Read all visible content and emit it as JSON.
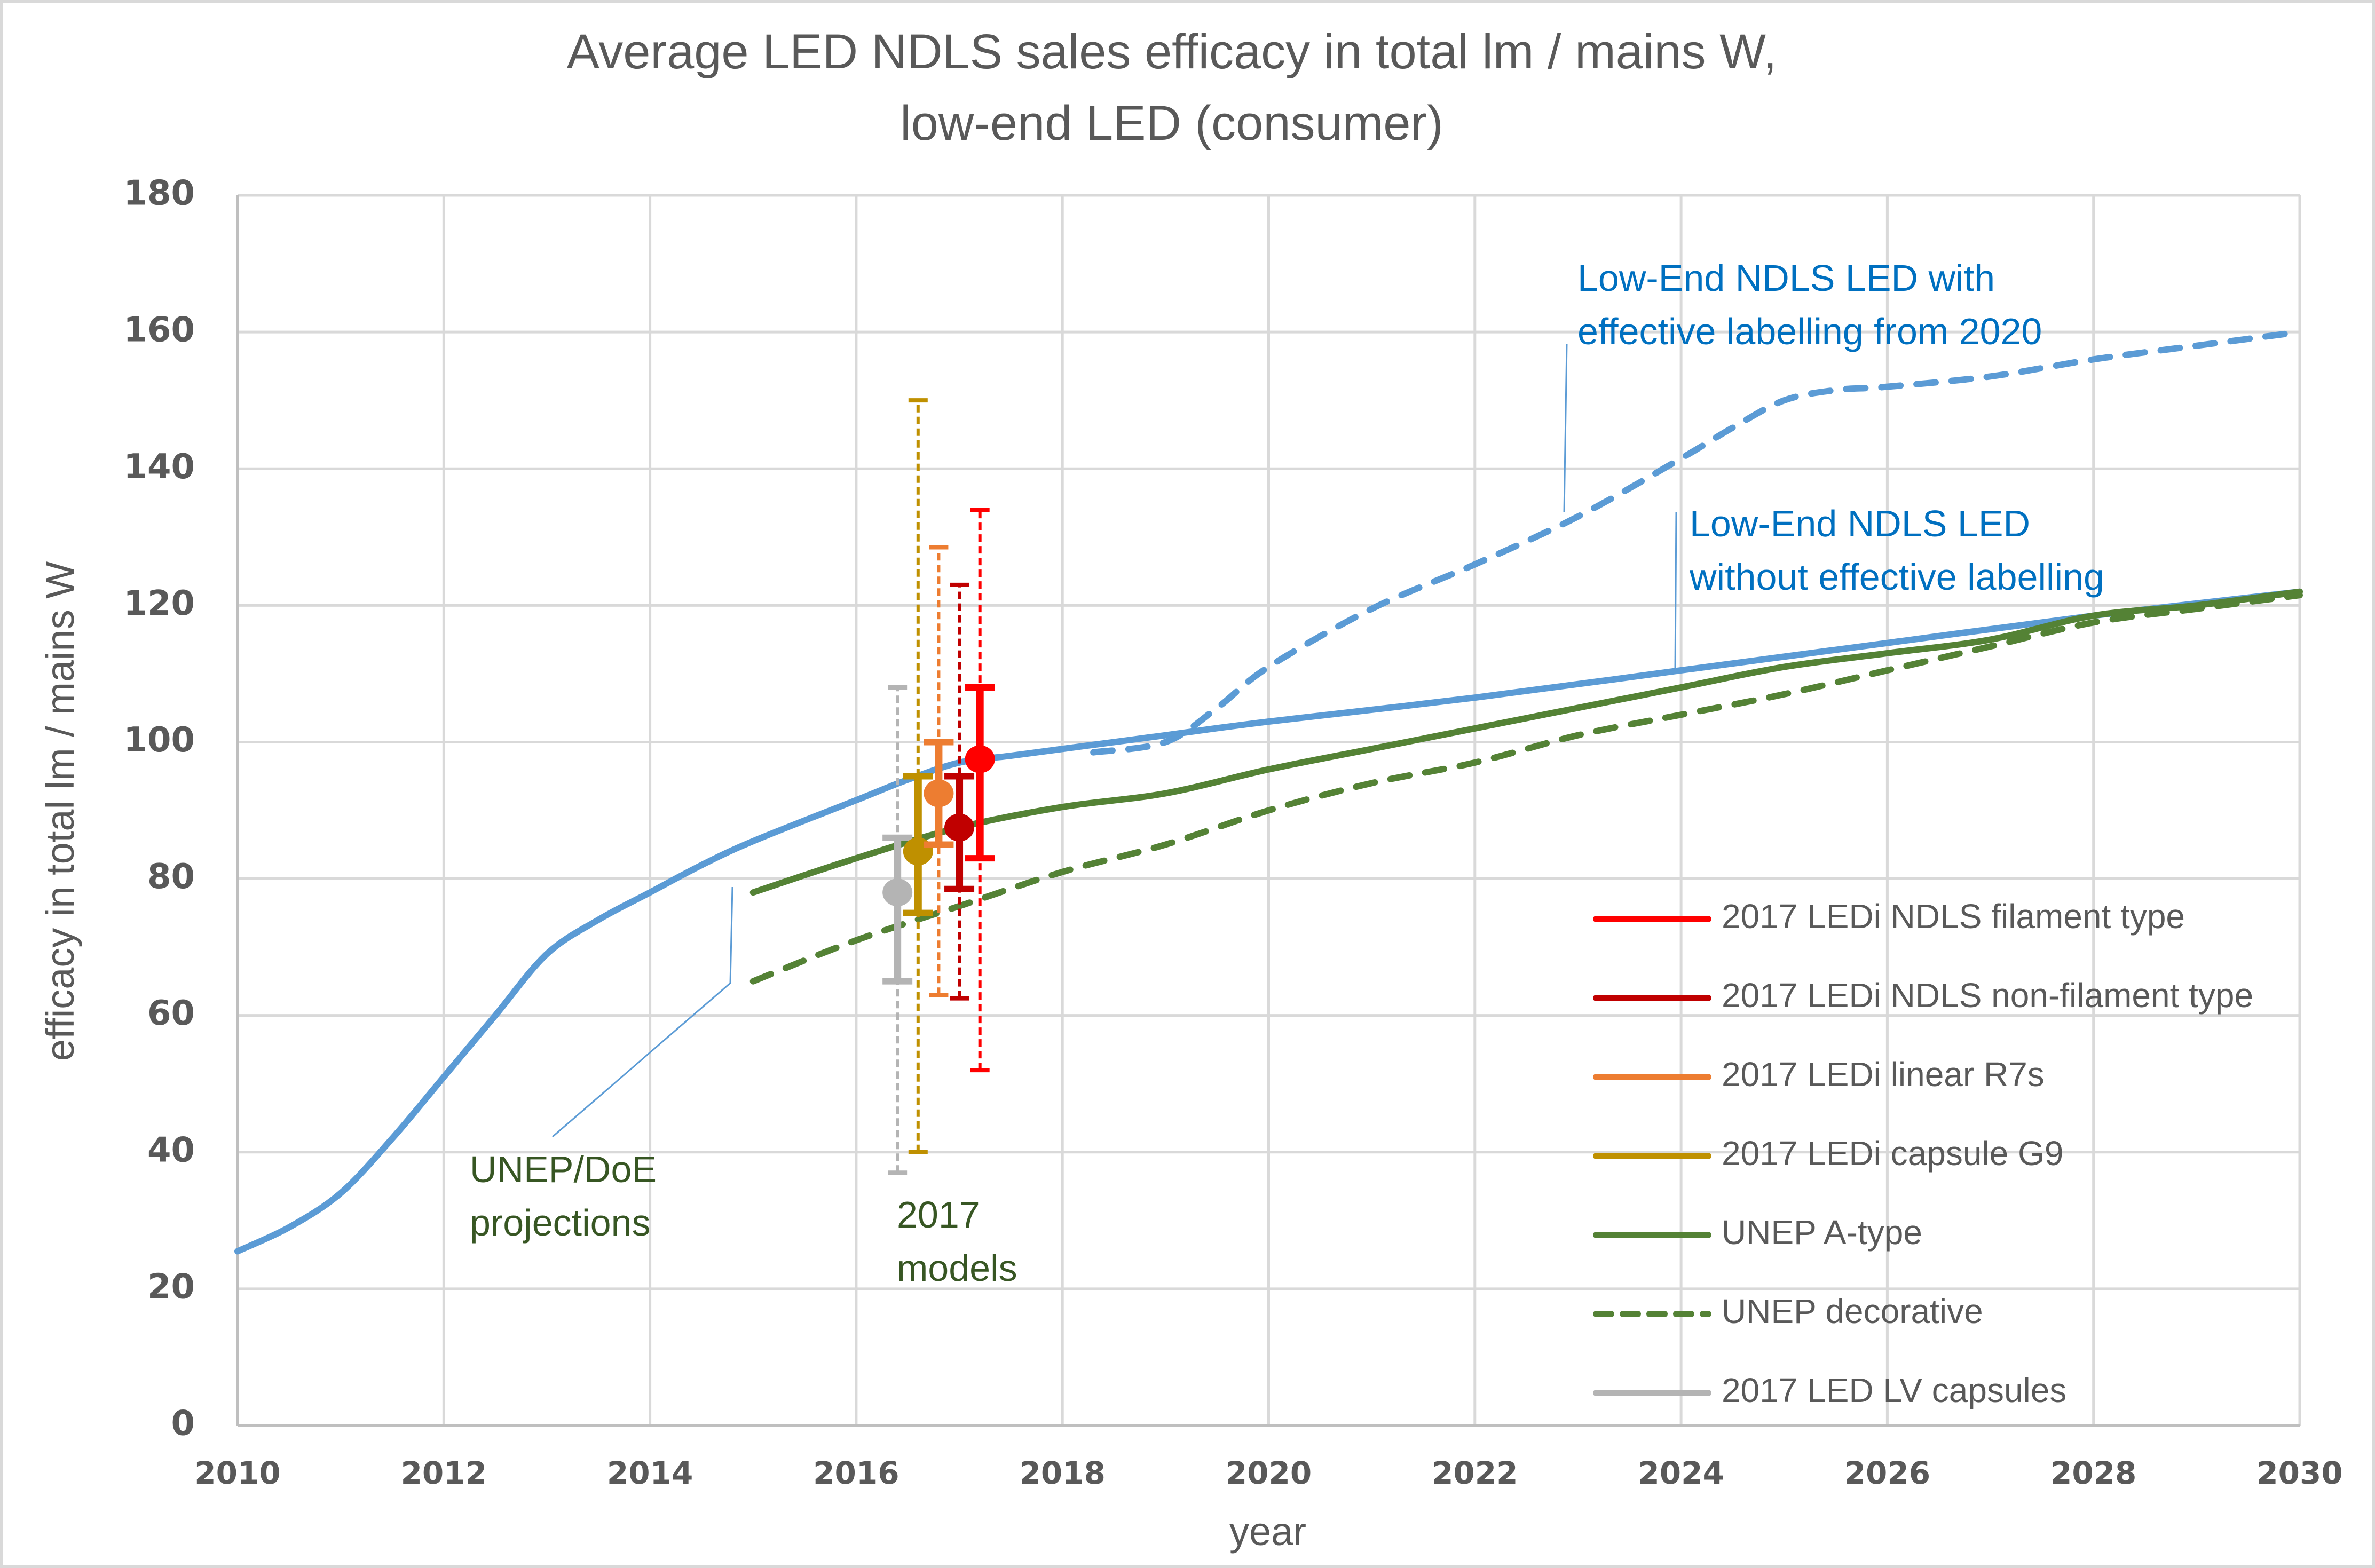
{
  "chart_data": {
    "type": "line",
    "title": [
      "Average LED NDLS sales efficacy in total lm / mains W,",
      "low-end LED (consumer)"
    ],
    "xlabel": "year",
    "ylabel": "efficacy in  total lm / mains W",
    "xlim": [
      2010,
      2030
    ],
    "ylim": [
      0,
      180
    ],
    "x_ticks": [
      "2010",
      "2012",
      "2014",
      "2016",
      "2018",
      "2020",
      "2022",
      "2024",
      "2026",
      "2028",
      "2030"
    ],
    "y_ticks": [
      "0",
      "20",
      "40",
      "60",
      "80",
      "100",
      "120",
      "140",
      "160",
      "180"
    ],
    "grid": true,
    "legend_position": "bottom-right (inside plot)",
    "series": [
      {
        "name": "Low-End NDLS LED without effective labelling",
        "color": "#5b9bd5",
        "style": "solid",
        "in_legend": false,
        "x": [
          2010,
          2010.5,
          2011,
          2011.5,
          2012,
          2012.5,
          2013,
          2013.5,
          2014,
          2014.5,
          2015,
          2016,
          2016.5,
          2017,
          2017.5,
          2018,
          2019,
          2020,
          2022,
          2024,
          2026,
          2028,
          2030
        ],
        "y": [
          25.5,
          29,
          34,
          42,
          51,
          60,
          69,
          74,
          78,
          82,
          85.5,
          91.5,
          94.5,
          97,
          98,
          99,
          101,
          103,
          106.5,
          110.5,
          114.5,
          118.5,
          122
        ]
      },
      {
        "name": "Low-End NDLS LED with effective labelling from 2020",
        "color": "#5b9bd5",
        "style": "dashed",
        "in_legend": false,
        "x": [
          2018.3,
          2019,
          2019.5,
          2020,
          2021,
          2022,
          2023,
          2024,
          2024.5,
          2025,
          2025.5,
          2026,
          2027,
          2028,
          2029,
          2030
        ],
        "y": [
          98.5,
          100,
          105,
          111,
          119.5,
          126,
          133,
          141.5,
          146,
          150,
          151.5,
          152,
          153.5,
          156,
          158,
          160
        ]
      },
      {
        "name": "UNEP A-type",
        "color": "#548235",
        "style": "solid",
        "in_legend": true,
        "x": [
          2015,
          2016,
          2017,
          2018,
          2019,
          2020,
          2021,
          2022,
          2023,
          2024,
          2025,
          2026,
          2027,
          2028,
          2029,
          2030
        ],
        "y": [
          78,
          83,
          87.5,
          90.5,
          92.5,
          96,
          99,
          102,
          105,
          108,
          111,
          113,
          115,
          118.5,
          120,
          122
        ]
      },
      {
        "name": "UNEP decorative",
        "color": "#548235",
        "style": "dashed",
        "in_legend": true,
        "x": [
          2015,
          2016,
          2017,
          2018,
          2019,
          2020,
          2021,
          2022,
          2023,
          2024,
          2025,
          2026,
          2027,
          2028,
          2029,
          2030
        ],
        "y": [
          65,
          71,
          76,
          81,
          85,
          90,
          94,
          97,
          101,
          104,
          107,
          110.5,
          114,
          117.5,
          119.5,
          121.5
        ]
      }
    ],
    "error_points": [
      {
        "name": "2017 LED LV capsules",
        "color": "#b4b4b4",
        "x": 2016.4,
        "y": 78,
        "inner": [
          65,
          86
        ],
        "outer": [
          37,
          108
        ]
      },
      {
        "name": "2017 LEDi capsule G9",
        "color": "#bf9000",
        "x": 2016.6,
        "y": 84,
        "inner": [
          75,
          95
        ],
        "outer": [
          40,
          150
        ]
      },
      {
        "name": "2017 LEDi linear R7s",
        "color": "#ed7d31",
        "x": 2016.8,
        "y": 92.5,
        "inner": [
          85,
          100
        ],
        "outer": [
          63,
          128.5
        ]
      },
      {
        "name": "2017 LEDi NDLS non-filament type",
        "color": "#c00000",
        "x": 2017.0,
        "y": 87.5,
        "inner": [
          78.5,
          95
        ],
        "outer": [
          62.5,
          123
        ]
      },
      {
        "name": "2017 LEDi NDLS filament type",
        "color": "#ff0000",
        "x": 2017.2,
        "y": 97.5,
        "inner": [
          83,
          108
        ],
        "outer": [
          52,
          134
        ]
      }
    ],
    "legend": [
      {
        "label": "2017 LEDi NDLS filament type",
        "color": "#ff0000",
        "style": "solid"
      },
      {
        "label": "2017 LEDi NDLS non-filament type",
        "color": "#c00000",
        "style": "solid"
      },
      {
        "label": "2017 LEDi linear R7s",
        "color": "#ed7d31",
        "style": "solid"
      },
      {
        "label": "2017 LEDi capsule G9",
        "color": "#bf9000",
        "style": "solid"
      },
      {
        "label": "UNEP A-type",
        "color": "#548235",
        "style": "solid"
      },
      {
        "label": "UNEP decorative",
        "color": "#548235",
        "style": "dashed"
      },
      {
        "label": "2017 LED LV capsules",
        "color": "#b4b4b4",
        "style": "solid"
      }
    ],
    "annotations": [
      {
        "id": "with-labelling",
        "lines": [
          "Low-End NDLS LED with",
          "effective labelling from 2020"
        ],
        "color": "#0070c0",
        "points_to": [
          2022.9,
          133
        ]
      },
      {
        "id": "without-labelling",
        "lines": [
          "Low-End NDLS LED",
          "without effective labelling"
        ],
        "color": "#0070c0",
        "points_to": [
          2024,
          110.5
        ]
      },
      {
        "id": "unep-doe",
        "lines": [
          "UNEP/DoE",
          "projections"
        ],
        "color": "#375623",
        "points_to": [
          2014.8,
          79
        ]
      },
      {
        "id": "models-2017",
        "lines": [
          "2017",
          "models"
        ],
        "color": "#375623"
      }
    ]
  }
}
